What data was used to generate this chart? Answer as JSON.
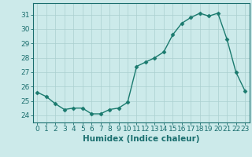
{
  "x": [
    0,
    1,
    2,
    3,
    4,
    5,
    6,
    7,
    8,
    9,
    10,
    11,
    12,
    13,
    14,
    15,
    16,
    17,
    18,
    19,
    20,
    21,
    22,
    23
  ],
  "y": [
    25.6,
    25.3,
    24.8,
    24.4,
    24.5,
    24.5,
    24.1,
    24.1,
    24.4,
    24.5,
    24.9,
    27.4,
    27.7,
    28.0,
    28.4,
    29.6,
    30.4,
    30.8,
    31.1,
    30.9,
    31.1,
    29.3,
    27.0,
    25.7
  ],
  "line_color": "#1a7a6e",
  "marker": "D",
  "marker_size": 2.5,
  "bg_color": "#cceaea",
  "grid_color": "#aacfcf",
  "xlabel": "Humidex (Indice chaleur)",
  "ylim": [
    23.5,
    31.8
  ],
  "xlim": [
    -0.5,
    23.5
  ],
  "yticks": [
    24,
    25,
    26,
    27,
    28,
    29,
    30,
    31
  ],
  "xticks": [
    0,
    1,
    2,
    3,
    4,
    5,
    6,
    7,
    8,
    9,
    10,
    11,
    12,
    13,
    14,
    15,
    16,
    17,
    18,
    19,
    20,
    21,
    22,
    23
  ],
  "tick_color": "#1a6e6e",
  "label_fontsize": 7.5,
  "tick_fontsize": 6.5
}
